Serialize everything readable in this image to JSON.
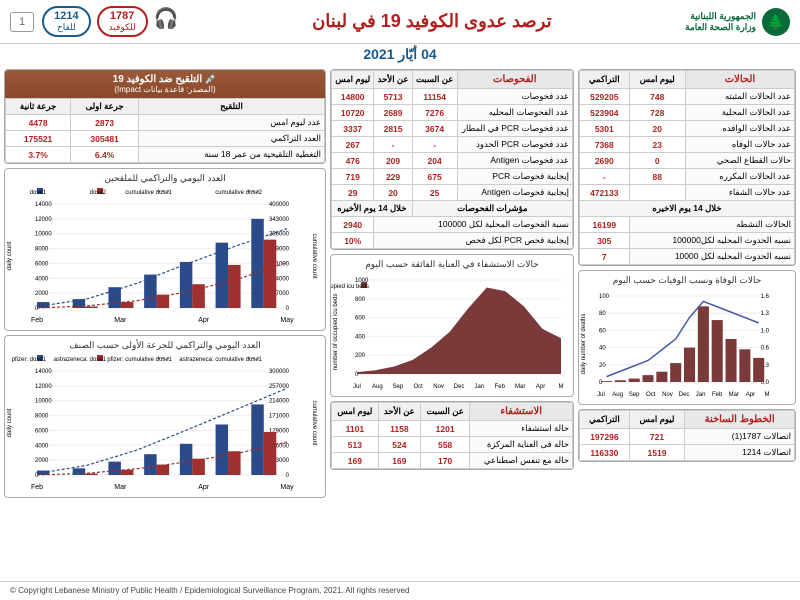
{
  "header": {
    "org1": "الجمهورية اللبنانية",
    "org2": "وزارة الصحة العامة",
    "title": "ترصد عدوى الكوفيد 19 في لبنان",
    "date": "04 أيّار 2021",
    "page": "1",
    "hotline1": {
      "num": "1787",
      "lbl": "للكوفيد"
    },
    "hotline2": {
      "num": "1214",
      "lbl": "للقاح"
    }
  },
  "cases": {
    "title": "الحالات",
    "cols": [
      "",
      "ليوم امس",
      "التراكمي"
    ],
    "rows": [
      [
        "عدد الحالات المثبته",
        "748",
        "529205"
      ],
      [
        "عدد الحالات المحلية",
        "728",
        "523904"
      ],
      [
        "عدد الحالات الوافده",
        "20",
        "5301"
      ],
      [
        "عدد حالات الوفاه",
        "23",
        "7368"
      ],
      [
        "حالات القطاع الصحي",
        "0",
        "2690"
      ],
      [
        "عدد الحالات المكرره",
        "88",
        "-"
      ],
      [
        "عدد حالات الشفاء",
        "",
        "472133"
      ]
    ],
    "section14": "خلال 14 يوم الاخيره",
    "rows14": [
      [
        "الحالات النشطه",
        "16199"
      ],
      [
        "نسبه الحدوث المحليه لكل100000",
        "305"
      ],
      [
        "نسبه الحدوث المحليه لكل 10000",
        "7"
      ]
    ]
  },
  "deaths_chart": {
    "title": "حالات الوفاة ونسب الوفيات حسب اليوم",
    "months": [
      "Jul",
      "Aug",
      "Sep",
      "Oct",
      "Nov",
      "Dec",
      "Jan",
      "Feb",
      "Mar",
      "Apr",
      "M"
    ],
    "deaths": [
      1,
      2,
      4,
      8,
      12,
      22,
      40,
      88,
      72,
      50,
      38,
      28
    ],
    "rate": [
      0.1,
      0.2,
      0.3,
      0.4,
      0.6,
      0.8,
      1.2,
      1.5,
      1.4,
      1.3,
      1.2,
      1.1
    ],
    "bar_color": "#7a3a3a",
    "line_color": "#4a5aa8",
    "ymax_deaths": 100,
    "ymax_rate": 1.6
  },
  "hotlines_table": {
    "title": "الخطوط الساخنة",
    "cols": [
      "",
      "ليوم امس",
      "التراكمي"
    ],
    "rows": [
      [
        "اتصالات 1787(1)",
        "721",
        "197296"
      ],
      [
        "اتصالات 1214",
        "1519",
        "116330"
      ]
    ]
  },
  "tests": {
    "title": "الفحوصات",
    "cols": [
      "",
      "عن السبت",
      "عن الأحد",
      "ليوم امس"
    ],
    "rows": [
      [
        "عدد فحوصات",
        "11154",
        "5713",
        "14800"
      ],
      [
        "عدد الفحوصات المحليه",
        "7276",
        "2689",
        "10720"
      ],
      [
        "عدد فحوصات PCR في المطار",
        "3674",
        "2815",
        "3337"
      ],
      [
        "عدد فحوصات PCR الحدود",
        "-",
        "-",
        "267"
      ],
      [
        "عدد فحوصات Antigen",
        "204",
        "209",
        "476"
      ],
      [
        "إيجابية فحوصات PCR",
        "675",
        "229",
        "719"
      ],
      [
        "إيجابية فحوصات Antigen",
        "25",
        "20",
        "29"
      ]
    ],
    "section": "مؤشرات الفحوصات",
    "section14": "خلال 14 يوم الأخيره",
    "indicators": [
      [
        "نسبة الفحوصات المحلية لكل 100000",
        "2940"
      ],
      [
        "إيجابية فحص PCR لكل فحص",
        "10%"
      ]
    ]
  },
  "icu_chart": {
    "title": "حالات الاستشفاء في العناية الفائقة حسب اليوم",
    "months": [
      "Jul",
      "Aug",
      "Sep",
      "Oct",
      "Nov",
      "Dec",
      "Jan",
      "Feb",
      "Mar",
      "Apr",
      "M"
    ],
    "values": [
      20,
      40,
      80,
      150,
      280,
      450,
      700,
      920,
      880,
      720,
      480,
      380
    ],
    "ymax": 1000,
    "color": "#7a3a3a",
    "legend": "occupied icu beds"
  },
  "hospital": {
    "title": "الاستشفاء",
    "cols": [
      "",
      "عن السبت",
      "عن الأحد",
      "ليوم امس"
    ],
    "rows": [
      [
        "حالة استشفاء",
        "1201",
        "1158",
        "1101"
      ],
      [
        "حاله فى العناية المركزة",
        "558",
        "524",
        "513"
      ],
      [
        "حاله مع تنفس اصطناعي",
        "170",
        "169",
        "169"
      ]
    ]
  },
  "vacc_head": {
    "title": "التلقيح ضد الكوفيد 19",
    "sub": "(المصدر: قاعدة بيانات Impact)"
  },
  "vacc_table": {
    "cols": [
      "التلقيح",
      "جرعة اولى",
      "جرعة ثانية"
    ],
    "rows": [
      [
        "عدد ليوم امس",
        "2873",
        "4478"
      ],
      [
        "العدد التراكمي",
        "305481",
        "175521"
      ],
      [
        "التغطية التلقيحية من عمر 18 سنة",
        "6.4%",
        "3.7%"
      ]
    ]
  },
  "vacc_chart1": {
    "title": "العدد اليومي والتراكمي للملقحين",
    "months": [
      "Feb",
      "Mar",
      "Apr",
      "May"
    ],
    "d1_daily": [
      800,
      1200,
      2800,
      4500,
      6200,
      8800,
      12000
    ],
    "d2_daily": [
      0,
      200,
      800,
      1800,
      3200,
      5800,
      9200
    ],
    "d1_cum": [
      5000,
      35000,
      95000,
      170000,
      240000,
      305000
    ],
    "d2_cum": [
      0,
      8000,
      28000,
      62000,
      110000,
      175000
    ],
    "c_d1": "#2a4a8a",
    "c_d2": "#a03030",
    "ymax_d": 14000,
    "ymax_c": 400000
  },
  "vacc_chart2": {
    "title": "العدد اليومي والتراكمي للجرعة الأولى حسب الصنف",
    "months": [
      "Feb",
      "Mar",
      "Apr",
      "May"
    ],
    "pf_daily": [
      600,
      900,
      1800,
      2800,
      4200,
      6800,
      9500
    ],
    "az_daily": [
      0,
      200,
      700,
      1400,
      2200,
      3200,
      5800
    ],
    "pf_cum": [
      4000,
      28000,
      72000,
      130000,
      190000,
      250000
    ],
    "az_cum": [
      0,
      5000,
      18000,
      38000,
      62000,
      95000
    ],
    "c_pf": "#2a4a8a",
    "c_az": "#a03030",
    "ymax_d": 14000,
    "ymax_c": 300000
  },
  "footer": "© Copyright Lebanese Ministry of Public Health / Epidemiological Surveillance Program, 2021. All rights reserved"
}
